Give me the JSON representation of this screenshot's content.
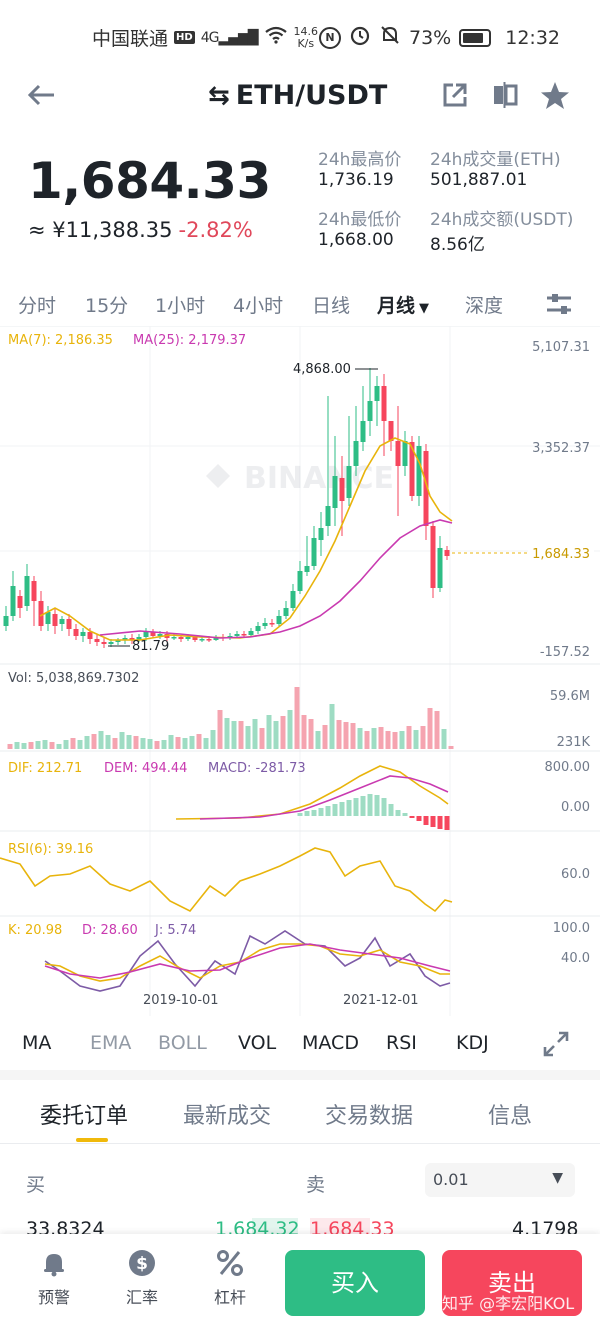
{
  "status_bar": {
    "carrier": "中国联通",
    "hd": "HD",
    "network": "4G",
    "speed_value": "14.6",
    "speed_unit": "K/s",
    "battery": "73%",
    "time": "12:32"
  },
  "header": {
    "pair": "ETH/USDT",
    "swap_glyph": "⇆"
  },
  "price": {
    "last": "1,684.33",
    "cny": "≈ ¥11,388.35",
    "change": "-2.82%"
  },
  "stats": {
    "high_label": "24h最高价",
    "high_value": "1,736.19",
    "low_label": "24h最低价",
    "low_value": "1,668.00",
    "vol_label": "24h成交量(ETH)",
    "vol_value": "501,887.01",
    "amount_label": "24h成交额(USDT)",
    "amount_value": "8.56亿"
  },
  "timeframes": {
    "t1": "分时",
    "t2": "15分",
    "t3": "1小时",
    "t4": "4小时",
    "t5": "日线",
    "t6": "月线",
    "t7": "深度"
  },
  "chart": {
    "ma7_label": "MA(7): 2,186.35",
    "ma25_label": "MA(25): 2,179.37",
    "y_top": "5,107.31",
    "y_mid": "3,352.37",
    "y_bottom": "-157.52",
    "high_marker": "4,868.00",
    "low_marker": "81.79",
    "last_price_tag": "1,684.33",
    "watermark": "BINANCE",
    "vol_label": "Vol: 5,038,869.7302",
    "vol_top": "59.6M",
    "vol_bottom": "231K",
    "macd_dif": "DIF: 212.71",
    "macd_dem": "DEM: 494.44",
    "macd_val": "MACD: -281.73",
    "macd_top": "800.00",
    "macd_zero": "0.00",
    "rsi_label": "RSI(6): 39.16",
    "rsi_level": "60.0",
    "kdj_k": "K: 20.98",
    "kdj_d": "D: 28.60",
    "kdj_j": "J: 5.74",
    "kdj_top": "100.0",
    "kdj_mid": "40.0",
    "date1": "2019-10-01",
    "date2": "2021-12-01",
    "colors": {
      "up": "#2ebd85",
      "down": "#f6465d",
      "ma7": "#e8b40c",
      "ma25": "#c93ab0",
      "vol_up": "#9edcc3",
      "vol_down": "#f5a4b0",
      "kdj_j": "#7d5ba6"
    }
  },
  "indicators": {
    "ma": "MA",
    "ema": "EMA",
    "boll": "BOLL",
    "vol": "VOL",
    "macd": "MACD",
    "rsi": "RSI",
    "kdj": "KDJ"
  },
  "orderbook": {
    "tab1": "委托订单",
    "tab2": "最新成交",
    "tab3": "交易数据",
    "tab4": "信息",
    "buy": "买",
    "sell": "卖",
    "precision": "0.01",
    "bid_qty": "33.8324",
    "bid_price": "1,684.32",
    "ask_price": "1,684.33",
    "ask_qty": "4.1798"
  },
  "bottom_nav": {
    "alert": "预警",
    "rate": "汇率",
    "leverage": "杠杆",
    "buy": "买入",
    "sell": "卖出",
    "watermark": "知乎 @李宏阳KOL"
  }
}
